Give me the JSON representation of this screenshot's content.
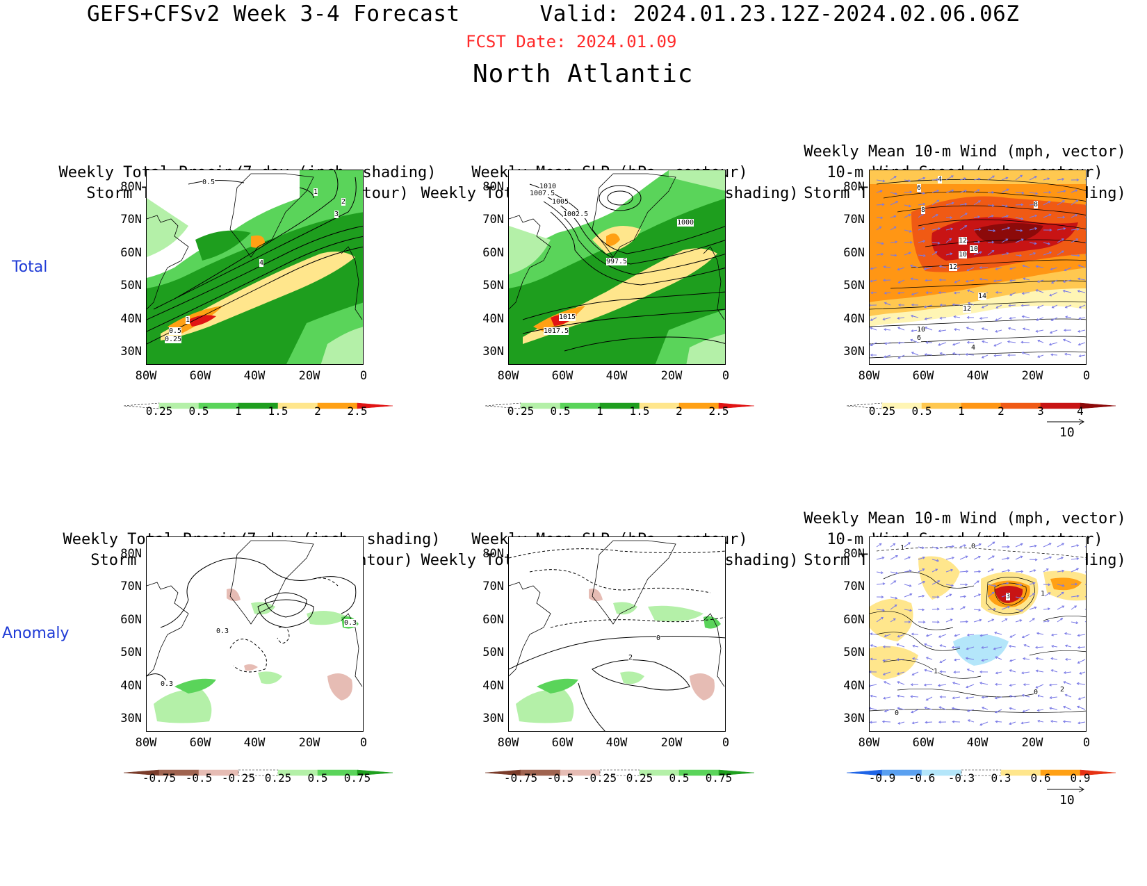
{
  "header": {
    "title": "GEFS+CFSv2 Week 3-4 Forecast      Valid: 2024.01.23.12Z-2024.02.06.06Z",
    "fcst_date": "FCST Date: 2024.01.09",
    "region": "North Atlantic"
  },
  "row_labels": {
    "total": "Total",
    "anomaly": "Anomaly"
  },
  "axes": {
    "lat_ticks": [
      "80N",
      "70N",
      "60N",
      "50N",
      "40N",
      "30N"
    ],
    "lon_ticks": [
      "80W",
      "60W",
      "40W",
      "20W",
      "0"
    ]
  },
  "panels": {
    "p1": {
      "title": [
        "Weekly Total Precip/7-day (inch, shading)",
        "Storm Track Density/7-day (contour)"
      ]
    },
    "p2": {
      "title": [
        "Weekly Mean SLP (hPa, contour)",
        "Weekly Total Precip/7-day (inch, shading)"
      ]
    },
    "p3": {
      "title": [
        "Weekly Mean 10-m Wind (mph, vector)",
        "10-m Wind Speed (mph, contour)",
        "Storm Track Density/7-day (shading)"
      ]
    },
    "p4": {
      "title": [
        "Weekly Total Precip/7-day (inch, shading)",
        "Storm Track Density/7-day (contour)"
      ]
    },
    "p5": {
      "title": [
        "Weekly Mean SLP (hPa, contour)",
        "Weekly Total Precip/7-day (inch, shading)"
      ]
    },
    "p6": {
      "title": [
        "Weekly Mean 10-m Wind (mph, vector)",
        "10-m Wind Speed (mph, contour)",
        "Storm Track Density/7-day (shading)"
      ]
    }
  },
  "contour_labels": {
    "p1": [
      "0.5",
      "1",
      "2",
      "3",
      "4",
      "1",
      "0.5",
      "0.25"
    ],
    "p2": [
      "1010",
      "1007.5",
      "1005",
      "1002.5",
      "1000",
      "997.5",
      "1015",
      "1017.5"
    ],
    "p3": [
      "4",
      "6",
      "8",
      "8",
      "12",
      "10",
      "10",
      "12",
      "14",
      "12",
      "10",
      "6",
      "4"
    ],
    "p4": [
      "0.3",
      "0.3",
      "0.3"
    ],
    "p5": [
      "0",
      "2"
    ],
    "p6": [
      "1",
      "0",
      "3",
      "1",
      "1",
      "0",
      "0",
      "2"
    ]
  },
  "colorbars": {
    "precip_total": {
      "labels": [
        "0.25",
        "0.5",
        "1",
        "1.5",
        "2",
        "2.5"
      ],
      "colors": [
        "#ffffff",
        "#b4f0a8",
        "#5ad45a",
        "#1e9e1e",
        "#ffe68c",
        "#ffa014",
        "#e11414"
      ]
    },
    "storm_total": {
      "labels": [
        "0.25",
        "0.5",
        "1",
        "2",
        "3",
        "4"
      ],
      "colors": [
        "#ffffff",
        "#fff5b4",
        "#ffc850",
        "#ff9614",
        "#f05a14",
        "#c81414",
        "#8c0a0a"
      ]
    },
    "precip_anom": {
      "labels": [
        "-0.75",
        "-0.5",
        "-0.25",
        "0.25",
        "0.5",
        "0.75"
      ],
      "colors": [
        "#7a3c2a",
        "#a06450",
        "#e6bcb4",
        "#ffffff",
        "#b4f0a8",
        "#5ad45a",
        "#1ea01e"
      ]
    },
    "storm_anom": {
      "labels": [
        "-0.9",
        "-0.6",
        "-0.3",
        "0.3",
        "0.6",
        "0.9"
      ],
      "colors": [
        "#1e64e6",
        "#5aa0f0",
        "#b4e6fa",
        "#ffffff",
        "#ffe68c",
        "#ffa014",
        "#e63214"
      ]
    }
  },
  "vector_ref": "10",
  "colors": {
    "fcst_red": "#ff2a2a",
    "row_label_blue": "#1f3bd6",
    "wind_vectors": "#7a7ae6"
  }
}
